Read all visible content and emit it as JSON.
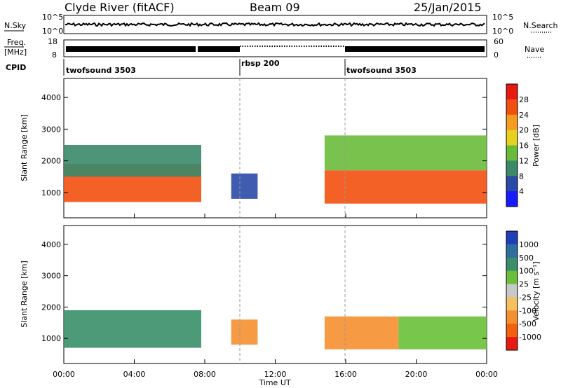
{
  "header": {
    "station": "Clyde River (fitACF)",
    "beam": "Beam 09",
    "date": "25/Jan/2015"
  },
  "strip": {
    "nsky_label": "N.Sky",
    "freq_label_1": "Freq.",
    "freq_label_2": "[MHz]",
    "cpid_label": "CPID",
    "nsearch_label": "N.Search",
    "nave_label": "Nave",
    "nsky_ticks": [
      "10^5",
      "10^0"
    ],
    "nsearch_ticks": [
      "10^5",
      "10^0"
    ],
    "freq_ticks": [
      "18",
      "8"
    ],
    "nave_ticks": [
      "60",
      "0"
    ]
  },
  "cpid_segments": [
    {
      "label": "twofsound 3503",
      "start_h": 0
    },
    {
      "label": "rbsp 200",
      "start_h": 10
    },
    {
      "label": "twofsound 3503",
      "start_h": 16
    }
  ],
  "chart_data": [
    {
      "type": "heatmap",
      "name": "power",
      "ylabel": "Slant Range [km]",
      "yticks": [
        "1000",
        "2000",
        "3000",
        "4000"
      ],
      "ylim": [
        200,
        4600
      ],
      "colorbar": {
        "title": "Power [dB]",
        "ticks": [
          "4",
          "8",
          "12",
          "16",
          "20",
          "24",
          "28"
        ],
        "range": [
          0,
          32
        ],
        "colors": [
          "#1a1aff",
          "#2a4aa8",
          "#3a8a6a",
          "#6abb3a",
          "#e8d020",
          "#f59b20",
          "#f25010",
          "#e61a10"
        ]
      },
      "regions": [
        {
          "x": [
            0,
            7.8
          ],
          "y": [
            700,
            1900
          ],
          "value": 24
        },
        {
          "x": [
            0,
            7.8
          ],
          "y": [
            1500,
            2500
          ],
          "value": 10
        },
        {
          "x": [
            9.5,
            11
          ],
          "y": [
            800,
            1600
          ],
          "value": 6
        },
        {
          "x": [
            14.8,
            24
          ],
          "y": [
            650,
            1700
          ],
          "value": 27
        },
        {
          "x": [
            14.8,
            24
          ],
          "y": [
            1700,
            2800
          ],
          "value": 13
        }
      ]
    },
    {
      "type": "heatmap",
      "name": "velocity",
      "ylabel": "Slant Range [km]",
      "yticks": [
        "1000",
        "2000",
        "3000",
        "4000"
      ],
      "ylim": [
        200,
        4600
      ],
      "colorbar": {
        "title": "Velocity [m s⁻¹]",
        "ticks": [
          "1000",
          "500",
          "100",
          "25",
          "-25",
          "-100",
          "-500",
          "-1000"
        ],
        "colors": [
          "#1f3fb8",
          "#2f6fa0",
          "#3a8f6a",
          "#6ac03a",
          "#c8c8c8",
          "#f5c060",
          "#f59030",
          "#f26010",
          "#e61a10"
        ]
      },
      "regions": [
        {
          "x": [
            0,
            7.8
          ],
          "y": [
            700,
            1900
          ],
          "value": 150
        },
        {
          "x": [
            9.5,
            11
          ],
          "y": [
            800,
            1600
          ],
          "value": -300
        },
        {
          "x": [
            14.8,
            19
          ],
          "y": [
            650,
            1700
          ],
          "value": -300
        },
        {
          "x": [
            19,
            24
          ],
          "y": [
            650,
            1700
          ],
          "value": 80
        }
      ]
    }
  ],
  "xaxis": {
    "title": "Time UT",
    "ticks": [
      "00:00",
      "04:00",
      "08:00",
      "12:00",
      "16:00",
      "20:00",
      "00:00"
    ],
    "range_h": [
      0,
      24
    ]
  }
}
